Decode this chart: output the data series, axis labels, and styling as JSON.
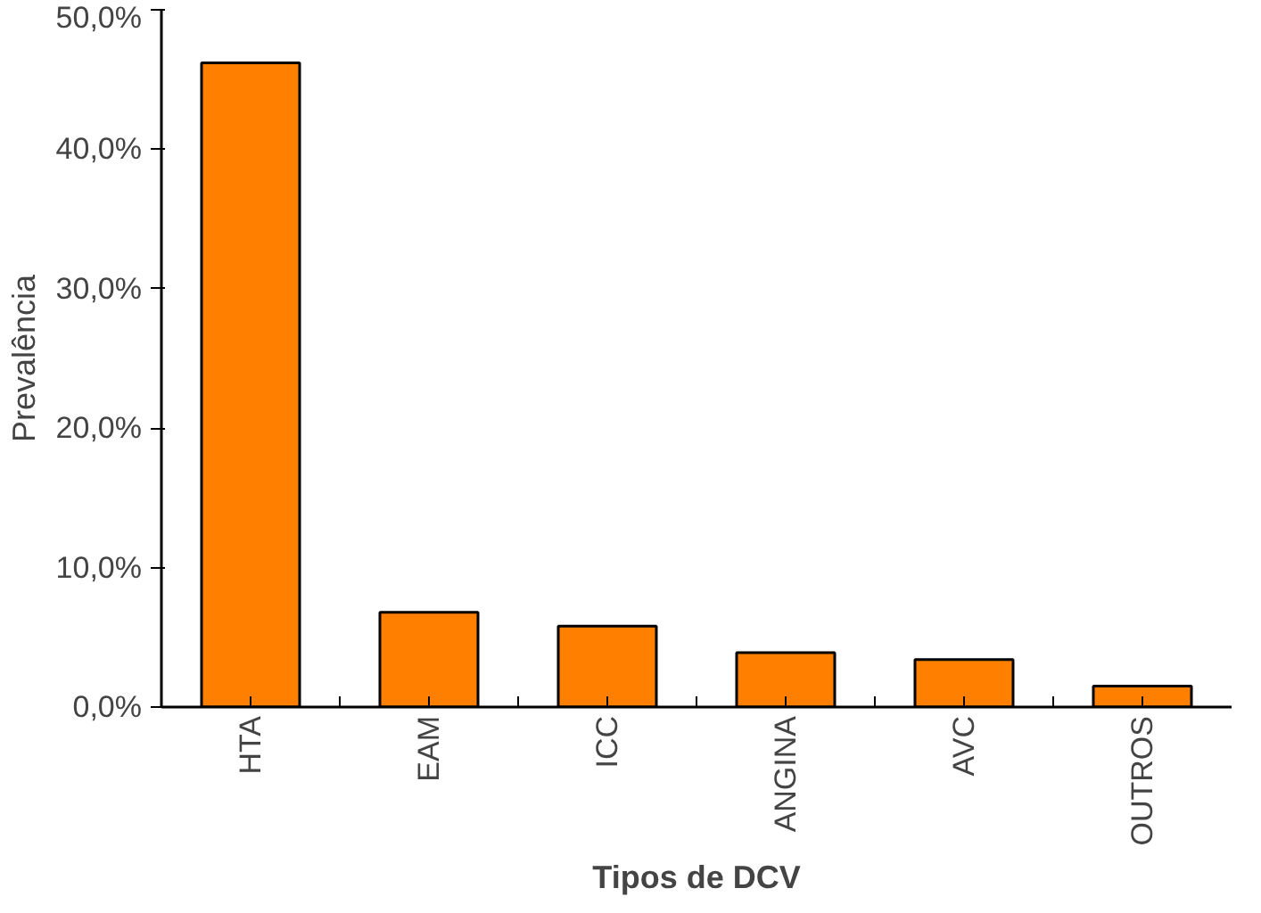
{
  "chart_data": {
    "type": "bar",
    "xlabel": "Tipos de DCV",
    "ylabel": "Prevalência",
    "categories": [
      "HTA",
      "EAM",
      "ICC",
      "ANGINA",
      "AVC",
      "OUTROS"
    ],
    "values": [
      46.2,
      6.8,
      5.8,
      3.9,
      3.4,
      1.5
    ],
    "color": "#ff8000",
    "ylim": [
      0,
      50
    ],
    "yticks": [
      {
        "value": 0,
        "label": "0,0%"
      },
      {
        "value": 10,
        "label": "10,0%"
      },
      {
        "value": 20,
        "label": "20,0%"
      },
      {
        "value": 30,
        "label": "30,0%"
      },
      {
        "value": 40,
        "label": "40,0%"
      },
      {
        "value": 50,
        "label": "50,0%"
      }
    ],
    "grid": false
  }
}
